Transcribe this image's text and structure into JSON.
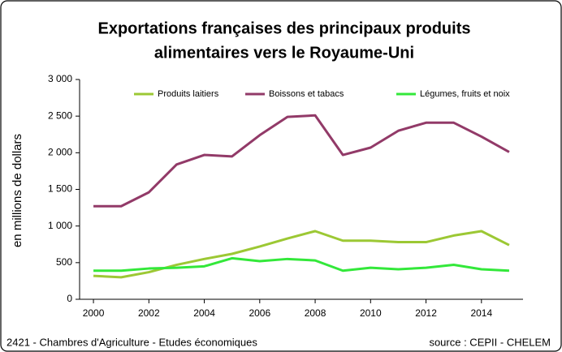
{
  "chart_data": {
    "type": "line",
    "title": [
      "Exportations françaises des principaux produits",
      "alimentaires vers le Royaume-Uni"
    ],
    "y_label": "en millions de dollars",
    "footer_left": "2421 - Chambres d'Agriculture - Etudes économiques",
    "footer_right": "source : CEPII - CHELEM",
    "x": [
      2000,
      2001,
      2002,
      2003,
      2004,
      2005,
      2006,
      2007,
      2008,
      2009,
      2010,
      2011,
      2012,
      2013,
      2014,
      2015
    ],
    "xlim": [
      1999.5,
      2015.5
    ],
    "xticks": [
      2000,
      2002,
      2004,
      2006,
      2008,
      2010,
      2012,
      2014
    ],
    "ylim": [
      0,
      3000
    ],
    "yticks": [
      0,
      500,
      {
        "value": 1000,
        "label": "1 000"
      },
      {
        "value": 1500,
        "label": "1 500"
      },
      {
        "value": 2000,
        "label": "2 000"
      },
      {
        "value": 2500,
        "label": "2 500"
      },
      {
        "value": 3000,
        "label": "3 000"
      }
    ],
    "legend": "top",
    "series": [
      {
        "name": "Produits laitiers",
        "color": "#9cc834",
        "values": [
          320,
          300,
          370,
          470,
          550,
          620,
          720,
          830,
          930,
          800,
          800,
          780,
          780,
          870,
          930,
          740
        ]
      },
      {
        "name": "Boissons et tabacs",
        "color": "#923a68",
        "values": [
          1270,
          1270,
          1460,
          1840,
          1970,
          1950,
          2240,
          2490,
          2510,
          1970,
          2070,
          2300,
          2410,
          2410,
          2220,
          2010
        ]
      },
      {
        "name": "Légumes, fruits et noix",
        "color": "#33e83a",
        "values": [
          390,
          390,
          420,
          430,
          450,
          560,
          520,
          550,
          530,
          390,
          430,
          410,
          430,
          470,
          410,
          390
        ]
      }
    ]
  }
}
